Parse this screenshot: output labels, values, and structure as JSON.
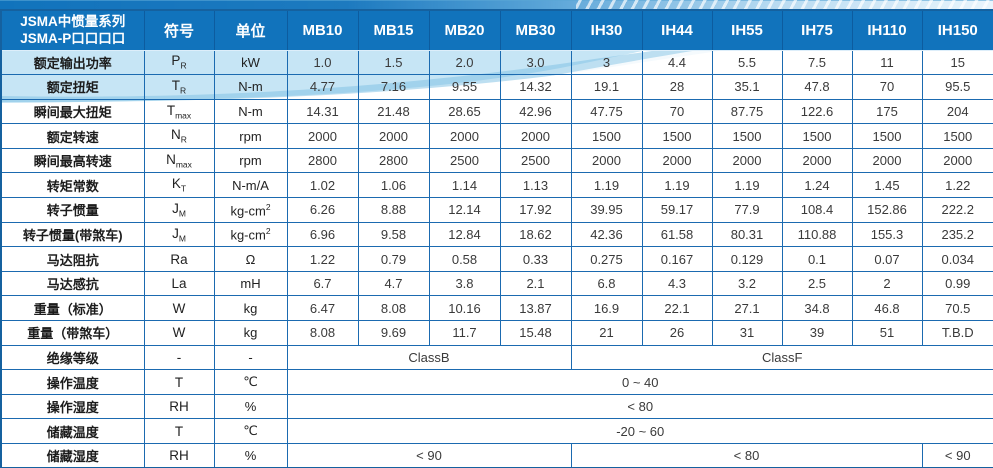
{
  "header": {
    "title_line1": "JSMA中惯量系列",
    "title_line2": "JSMA-P口口口口",
    "symbol_col": "符号",
    "unit_col": "单位",
    "models": [
      "MB10",
      "MB15",
      "MB20",
      "MB30",
      "IH30",
      "IH44",
      "IH55",
      "IH75",
      "IH110",
      "IH150"
    ]
  },
  "colors": {
    "header_bg": "#1173bc",
    "grid_line": "#1b6ab0",
    "swoosh_light": "#b3dcf2",
    "swoosh_mid": "#7cc0e4",
    "text_dark": "#333333"
  },
  "rows": [
    {
      "label": "额定输出功率",
      "sym": "P",
      "sym_sub": "R",
      "unit": "kW",
      "values": [
        "1.0",
        "1.5",
        "2.0",
        "3.0",
        "3",
        "4.4",
        "5.5",
        "7.5",
        "11",
        "15"
      ]
    },
    {
      "label": "额定扭矩",
      "sym": "T",
      "sym_sub": "R",
      "unit": "N-m",
      "values": [
        "4.77",
        "7.16",
        "9.55",
        "14.32",
        "19.1",
        "28",
        "35.1",
        "47.8",
        "70",
        "95.5"
      ]
    },
    {
      "label": "瞬间最大扭矩",
      "sym": "T",
      "sym_sub": "max",
      "unit": "N-m",
      "values": [
        "14.31",
        "21.48",
        "28.65",
        "42.96",
        "47.75",
        "70",
        "87.75",
        "122.6",
        "175",
        "204"
      ]
    },
    {
      "label": "额定转速",
      "sym": "N",
      "sym_sub": "R",
      "unit": "rpm",
      "values": [
        "2000",
        "2000",
        "2000",
        "2000",
        "1500",
        "1500",
        "1500",
        "1500",
        "1500",
        "1500"
      ]
    },
    {
      "label": "瞬间最高转速",
      "sym": "N",
      "sym_sub": "max",
      "unit": "rpm",
      "values": [
        "2800",
        "2800",
        "2500",
        "2500",
        "2000",
        "2000",
        "2000",
        "2000",
        "2000",
        "2000"
      ]
    },
    {
      "label": "转矩常数",
      "sym": "K",
      "sym_sub": "T",
      "unit": "N-m/A",
      "values": [
        "1.02",
        "1.06",
        "1.14",
        "1.13",
        "1.19",
        "1.19",
        "1.19",
        "1.24",
        "1.45",
        "1.22"
      ]
    },
    {
      "label": "转子惯量",
      "sym": "J",
      "sym_sub": "M",
      "unit": "kg-cm",
      "unit_sup": "2",
      "values": [
        "6.26",
        "8.88",
        "12.14",
        "17.92",
        "39.95",
        "59.17",
        "77.9",
        "108.4",
        "152.86",
        "222.2"
      ]
    },
    {
      "label": "转子惯量(带煞车)",
      "sym": "J",
      "sym_sub": "M",
      "unit": "kg-cm",
      "unit_sup": "2",
      "values": [
        "6.96",
        "9.58",
        "12.84",
        "18.62",
        "42.36",
        "61.58",
        "80.31",
        "110.88",
        "155.3",
        "235.2"
      ]
    },
    {
      "label": "马达阻抗",
      "sym": "Ra",
      "unit": "Ω",
      "values": [
        "1.22",
        "0.79",
        "0.58",
        "0.33",
        "0.275",
        "0.167",
        "0.129",
        "0.1",
        "0.07",
        "0.034"
      ]
    },
    {
      "label": "马达感抗",
      "sym": "La",
      "unit": "mH",
      "values": [
        "6.7",
        "4.7",
        "3.8",
        "2.1",
        "6.8",
        "4.3",
        "3.2",
        "2.5",
        "2",
        "0.99"
      ]
    },
    {
      "label": "重量（标准）",
      "sym": "W",
      "unit": "kg",
      "values": [
        "6.47",
        "8.08",
        "10.16",
        "13.87",
        "16.9",
        "22.1",
        "27.1",
        "34.8",
        "46.8",
        "70.5"
      ]
    },
    {
      "label": "重量（带煞车）",
      "sym": "W",
      "unit": "kg",
      "values": [
        "8.08",
        "9.69",
        "11.7",
        "15.48",
        "21",
        "26",
        "31",
        "39",
        "51",
        "T.B.D"
      ]
    },
    {
      "label": "绝缘等级",
      "sym": "-",
      "unit": "-",
      "spans": [
        {
          "text": "ClassB",
          "cols": 4
        },
        {
          "text": "ClassF",
          "cols": 6
        }
      ]
    },
    {
      "label": "操作温度",
      "sym": "T",
      "unit": "℃",
      "spans": [
        {
          "text": "0 ~ 40",
          "cols": 10
        }
      ]
    },
    {
      "label": "操作湿度",
      "sym": "RH",
      "unit": "%",
      "spans": [
        {
          "text": "< 80",
          "cols": 10
        }
      ]
    },
    {
      "label": "储藏温度",
      "sym": "T",
      "unit": "℃",
      "spans": [
        {
          "text": "-20 ~ 60",
          "cols": 10
        }
      ]
    },
    {
      "label": "储藏湿度",
      "sym": "RH",
      "unit": "%",
      "spans": [
        {
          "text": "< 90",
          "cols": 4
        },
        {
          "text": "< 80",
          "cols": 5
        },
        {
          "text": "< 90",
          "cols": 1
        }
      ]
    }
  ]
}
